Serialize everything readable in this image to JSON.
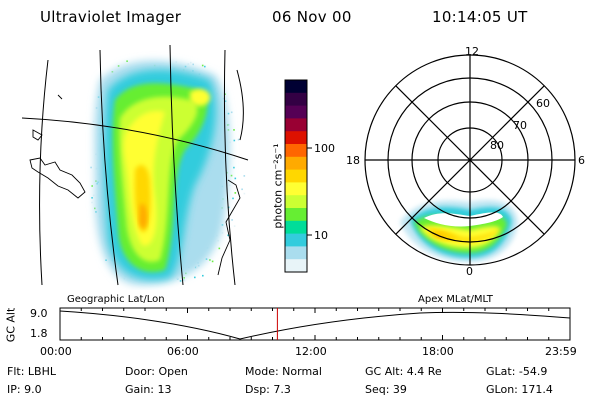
{
  "header": {
    "instrument": "Ultraviolet Imager",
    "date": "06 Nov 00",
    "time": "10:14:05 UT"
  },
  "colorbar": {
    "unit_label": "photon cm⁻²s⁻¹",
    "ticks": [
      "100",
      "10"
    ],
    "colors": [
      "#000033",
      "#330044",
      "#550055",
      "#990033",
      "#dd1100",
      "#ff6600",
      "#ffaa00",
      "#ffd700",
      "#ffff33",
      "#ccff33",
      "#66ee33",
      "#00dd99",
      "#33ccdd",
      "#aaddee",
      "#e8f4f8"
    ]
  },
  "geo_map": {
    "label": "Geographic Lat/Lon"
  },
  "polar": {
    "label": "Apex MLat/MLT",
    "mlt_labels": {
      "top": "12",
      "left": "18",
      "right": "6",
      "bottom": "0"
    },
    "lat_labels": [
      "60",
      "70",
      "80"
    ]
  },
  "altitude_plot": {
    "ylabel": "GC Alt",
    "yticks": [
      "9.0",
      "1.8"
    ],
    "xticks": [
      "00:00",
      "06:00",
      "12:00",
      "18:00",
      "23:59"
    ],
    "current_marker_hour": 10.23
  },
  "info": {
    "filter": "Flt:  LBHL",
    "ip": "IP:  9.0",
    "door": "Door:  Open",
    "gain": "Gain:  13",
    "mode": "Mode:  Normal",
    "dsp": "Dsp:       7.3",
    "gc_alt": "GC Alt:  4.4 Re",
    "seq": "Seq:  39",
    "glat": "GLat:  -54.9",
    "glon": "GLon:  171.4"
  }
}
